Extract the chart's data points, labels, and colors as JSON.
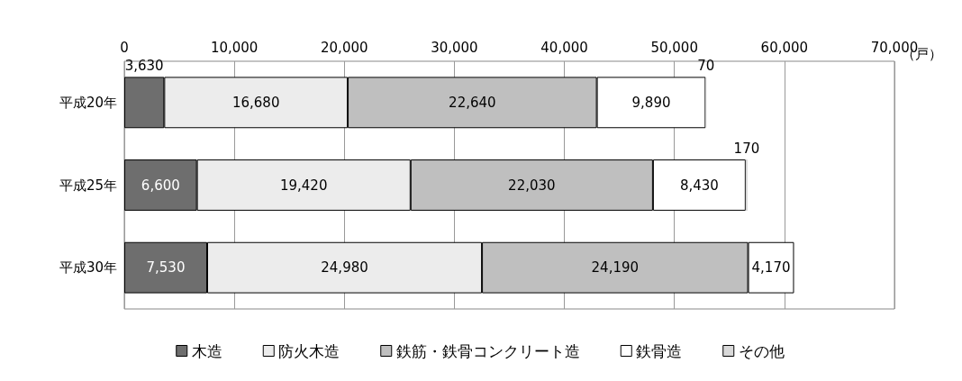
{
  "chart_data": {
    "type": "bar",
    "orientation": "horizontal",
    "stacked": true,
    "categories": [
      "平成20年",
      "平成25年",
      "平成30年"
    ],
    "series": [
      {
        "name": "木造",
        "color": "#6e6e6e",
        "values": [
          3630,
          6600,
          7530
        ],
        "value_labels": [
          "3,630",
          "6,600",
          "7,530"
        ]
      },
      {
        "name": "防火木造",
        "color": "#ececec",
        "values": [
          16680,
          19420,
          24980
        ],
        "value_labels": [
          "16,680",
          "19,420",
          "24,980"
        ]
      },
      {
        "name": "鉄筋・鉄骨コンクリート造",
        "color": "#bfbfbf",
        "values": [
          22640,
          22030,
          24190
        ],
        "value_labels": [
          "22,640",
          "22,030",
          "24,190"
        ]
      },
      {
        "name": "鉄骨造",
        "color": "#ffffff",
        "values": [
          9890,
          8430,
          4170
        ],
        "value_labels": [
          "9,890",
          "8,430",
          "4,170"
        ]
      },
      {
        "name": "その他",
        "color": "#d9d9d9",
        "values": [
          70,
          170,
          null
        ],
        "value_labels": [
          "70",
          "170",
          null
        ]
      }
    ],
    "xlim": [
      0,
      70000
    ],
    "xticks": [
      0,
      {
        "value": 10000,
        "label": "10,000"
      },
      {
        "value": 20000,
        "label": "20,000"
      },
      {
        "value": 30000,
        "label": "30,000"
      },
      {
        "value": 40000,
        "label": "40,000"
      },
      {
        "value": 50000,
        "label": "50,000"
      },
      {
        "value": 60000,
        "label": "60,000"
      },
      {
        "value": 70000,
        "label": "70,000"
      }
    ],
    "grid": "x",
    "legend": "bottom",
    "annotations": [
      "（戸）"
    ]
  }
}
